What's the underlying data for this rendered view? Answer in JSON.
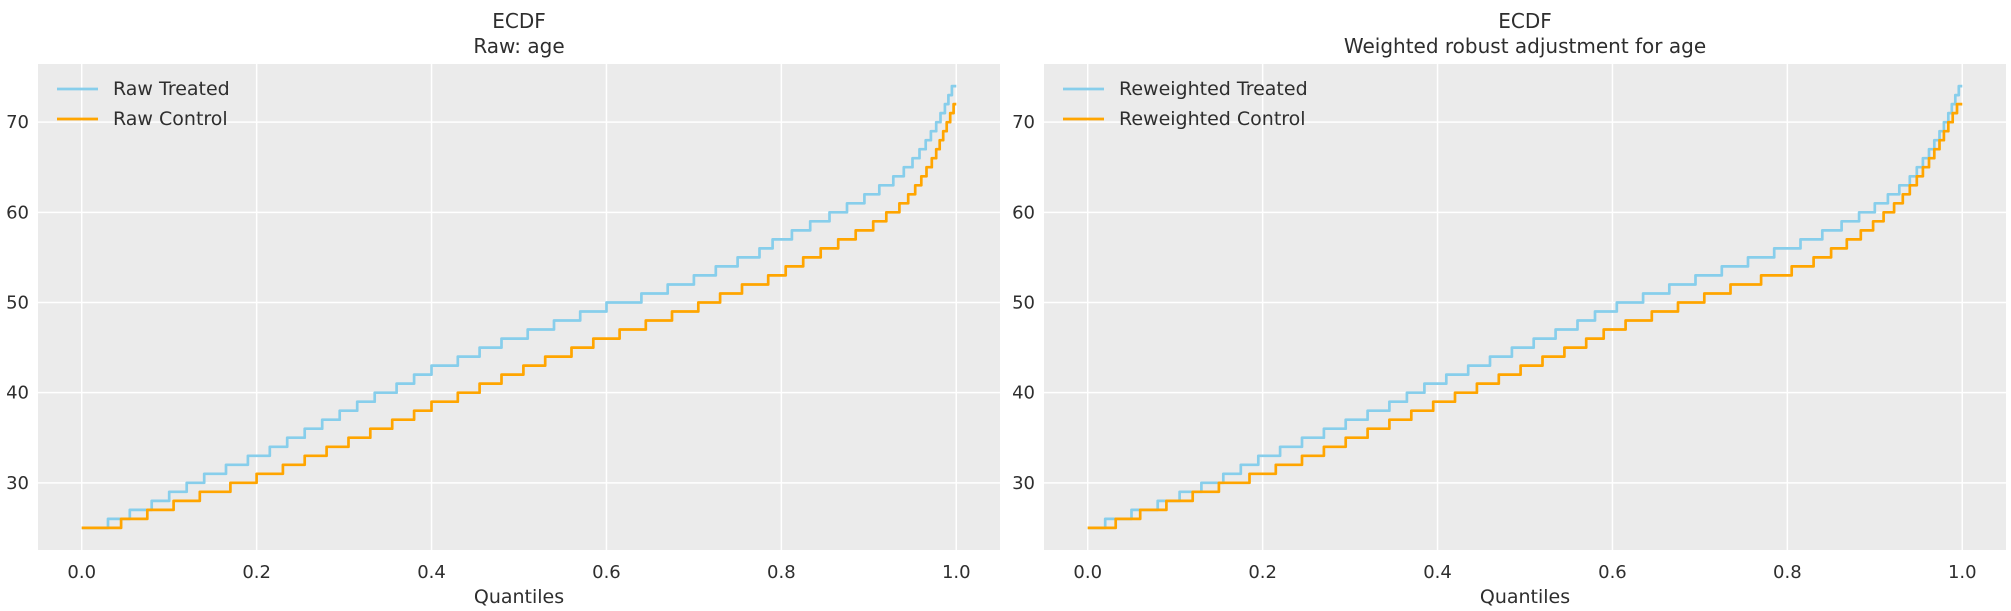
{
  "figure": {
    "background": "#ffffff",
    "plot_background": "#ebebeb",
    "grid_color": "#ffffff",
    "text_color": "#2e2e2e"
  },
  "chart_data": [
    {
      "type": "line",
      "subtype": "ecdf-step-quantile",
      "title_line1": "ECDF",
      "title_line2": "Raw: age",
      "xlabel": "Quantiles",
      "x_ticks": [
        0.0,
        0.2,
        0.4,
        0.6,
        0.8,
        1.0
      ],
      "y_ticks": [
        30,
        40,
        50,
        60,
        70
      ],
      "xlim": [
        -0.05,
        1.05
      ],
      "ylim": [
        22.55,
        76.45
      ],
      "grid": true,
      "legend_position": "upper-left",
      "series": [
        {
          "name": "Raw Treated",
          "color": "#87CEEB",
          "start": [
            0,
            25
          ],
          "steps": [
            [
              0.03,
              26
            ],
            [
              0.055,
              27
            ],
            [
              0.08,
              28
            ],
            [
              0.1,
              29
            ],
            [
              0.12,
              30
            ],
            [
              0.14,
              31
            ],
            [
              0.165,
              32
            ],
            [
              0.19,
              33
            ],
            [
              0.215,
              34
            ],
            [
              0.235,
              35
            ],
            [
              0.255,
              36
            ],
            [
              0.275,
              37
            ],
            [
              0.295,
              38
            ],
            [
              0.315,
              39
            ],
            [
              0.335,
              40
            ],
            [
              0.36,
              41
            ],
            [
              0.38,
              42
            ],
            [
              0.4,
              43
            ],
            [
              0.43,
              44
            ],
            [
              0.455,
              45
            ],
            [
              0.48,
              46
            ],
            [
              0.51,
              47
            ],
            [
              0.54,
              48
            ],
            [
              0.57,
              49
            ],
            [
              0.6,
              50
            ],
            [
              0.64,
              51
            ],
            [
              0.67,
              52
            ],
            [
              0.7,
              53
            ],
            [
              0.725,
              54
            ],
            [
              0.75,
              55
            ],
            [
              0.775,
              56
            ],
            [
              0.79,
              57
            ],
            [
              0.812,
              58
            ],
            [
              0.833,
              59
            ],
            [
              0.855,
              60
            ],
            [
              0.875,
              61
            ],
            [
              0.895,
              62
            ],
            [
              0.912,
              63
            ],
            [
              0.928,
              64
            ],
            [
              0.94,
              65
            ],
            [
              0.95,
              66
            ],
            [
              0.958,
              67
            ],
            [
              0.965,
              68
            ],
            [
              0.971,
              69
            ],
            [
              0.977,
              70
            ],
            [
              0.982,
              71
            ],
            [
              0.987,
              72
            ],
            [
              0.991,
              73
            ],
            [
              0.995,
              74
            ]
          ]
        },
        {
          "name": "Raw Control",
          "color": "#FFA500",
          "start": [
            0,
            25
          ],
          "steps": [
            [
              0.045,
              26
            ],
            [
              0.075,
              27
            ],
            [
              0.105,
              28
            ],
            [
              0.135,
              29
            ],
            [
              0.17,
              30
            ],
            [
              0.2,
              31
            ],
            [
              0.23,
              32
            ],
            [
              0.255,
              33
            ],
            [
              0.28,
              34
            ],
            [
              0.305,
              35
            ],
            [
              0.33,
              36
            ],
            [
              0.355,
              37
            ],
            [
              0.38,
              38
            ],
            [
              0.4,
              39
            ],
            [
              0.43,
              40
            ],
            [
              0.455,
              41
            ],
            [
              0.48,
              42
            ],
            [
              0.505,
              43
            ],
            [
              0.53,
              44
            ],
            [
              0.56,
              45
            ],
            [
              0.585,
              46
            ],
            [
              0.615,
              47
            ],
            [
              0.645,
              48
            ],
            [
              0.675,
              49
            ],
            [
              0.705,
              50
            ],
            [
              0.73,
              51
            ],
            [
              0.755,
              52
            ],
            [
              0.785,
              53
            ],
            [
              0.805,
              54
            ],
            [
              0.825,
              55
            ],
            [
              0.845,
              56
            ],
            [
              0.865,
              57
            ],
            [
              0.885,
              58
            ],
            [
              0.905,
              59
            ],
            [
              0.92,
              60
            ],
            [
              0.935,
              61
            ],
            [
              0.945,
              62
            ],
            [
              0.953,
              63
            ],
            [
              0.96,
              64
            ],
            [
              0.966,
              65
            ],
            [
              0.972,
              66
            ],
            [
              0.977,
              67
            ],
            [
              0.981,
              68
            ],
            [
              0.985,
              69
            ],
            [
              0.989,
              70
            ],
            [
              0.993,
              71
            ],
            [
              0.997,
              72
            ]
          ]
        }
      ]
    },
    {
      "type": "line",
      "subtype": "ecdf-step-quantile",
      "title_line1": "ECDF",
      "title_line2": "Weighted robust adjustment for age",
      "xlabel": "Quantiles",
      "x_ticks": [
        0.0,
        0.2,
        0.4,
        0.6,
        0.8,
        1.0
      ],
      "y_ticks": [
        30,
        40,
        50,
        60,
        70
      ],
      "xlim": [
        -0.05,
        1.05
      ],
      "ylim": [
        22.55,
        76.45
      ],
      "grid": true,
      "legend_position": "upper-left",
      "series": [
        {
          "name": "Reweighted Treated",
          "color": "#87CEEB",
          "start": [
            0,
            25
          ],
          "steps": [
            [
              0.02,
              26
            ],
            [
              0.05,
              27
            ],
            [
              0.08,
              28
            ],
            [
              0.105,
              29
            ],
            [
              0.13,
              30
            ],
            [
              0.155,
              31
            ],
            [
              0.175,
              32
            ],
            [
              0.195,
              33
            ],
            [
              0.22,
              34
            ],
            [
              0.245,
              35
            ],
            [
              0.27,
              36
            ],
            [
              0.295,
              37
            ],
            [
              0.32,
              38
            ],
            [
              0.345,
              39
            ],
            [
              0.365,
              40
            ],
            [
              0.385,
              41
            ],
            [
              0.41,
              42
            ],
            [
              0.435,
              43
            ],
            [
              0.46,
              44
            ],
            [
              0.485,
              45
            ],
            [
              0.51,
              46
            ],
            [
              0.535,
              47
            ],
            [
              0.56,
              48
            ],
            [
              0.58,
              49
            ],
            [
              0.605,
              50
            ],
            [
              0.635,
              51
            ],
            [
              0.665,
              52
            ],
            [
              0.695,
              53
            ],
            [
              0.725,
              54
            ],
            [
              0.755,
              55
            ],
            [
              0.785,
              56
            ],
            [
              0.815,
              57
            ],
            [
              0.84,
              58
            ],
            [
              0.862,
              59
            ],
            [
              0.882,
              60
            ],
            [
              0.9,
              61
            ],
            [
              0.915,
              62
            ],
            [
              0.928,
              63
            ],
            [
              0.94,
              64
            ],
            [
              0.948,
              65
            ],
            [
              0.955,
              66
            ],
            [
              0.962,
              67
            ],
            [
              0.968,
              68
            ],
            [
              0.974,
              69
            ],
            [
              0.979,
              70
            ],
            [
              0.984,
              71
            ],
            [
              0.988,
              72
            ],
            [
              0.992,
              73
            ],
            [
              0.996,
              74
            ]
          ]
        },
        {
          "name": "Reweighted Control",
          "color": "#FFA500",
          "start": [
            0,
            25
          ],
          "steps": [
            [
              0.032,
              26
            ],
            [
              0.06,
              27
            ],
            [
              0.09,
              28
            ],
            [
              0.12,
              29
            ],
            [
              0.15,
              30
            ],
            [
              0.185,
              31
            ],
            [
              0.215,
              32
            ],
            [
              0.245,
              33
            ],
            [
              0.27,
              34
            ],
            [
              0.295,
              35
            ],
            [
              0.32,
              36
            ],
            [
              0.345,
              37
            ],
            [
              0.37,
              38
            ],
            [
              0.395,
              39
            ],
            [
              0.42,
              40
            ],
            [
              0.445,
              41
            ],
            [
              0.47,
              42
            ],
            [
              0.495,
              43
            ],
            [
              0.52,
              44
            ],
            [
              0.545,
              45
            ],
            [
              0.57,
              46
            ],
            [
              0.59,
              47
            ],
            [
              0.615,
              48
            ],
            [
              0.645,
              49
            ],
            [
              0.675,
              50
            ],
            [
              0.705,
              51
            ],
            [
              0.735,
              52
            ],
            [
              0.77,
              53
            ],
            [
              0.805,
              54
            ],
            [
              0.83,
              55
            ],
            [
              0.85,
              56
            ],
            [
              0.868,
              57
            ],
            [
              0.884,
              58
            ],
            [
              0.898,
              59
            ],
            [
              0.91,
              60
            ],
            [
              0.922,
              61
            ],
            [
              0.932,
              62
            ],
            [
              0.94,
              63
            ],
            [
              0.948,
              64
            ],
            [
              0.955,
              65
            ],
            [
              0.962,
              66
            ],
            [
              0.968,
              67
            ],
            [
              0.974,
              68
            ],
            [
              0.979,
              69
            ],
            [
              0.984,
              70
            ],
            [
              0.989,
              71
            ],
            [
              0.994,
              72
            ]
          ]
        }
      ]
    }
  ]
}
